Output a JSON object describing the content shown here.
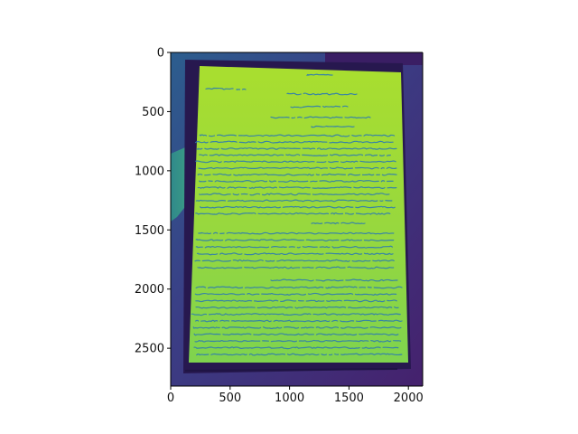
{
  "chart_data": {
    "type": "heatmap",
    "title": "",
    "xlabel": "",
    "ylabel": "",
    "xlim": [
      0,
      2120
    ],
    "ylim": [
      2820,
      0
    ],
    "x_ticks": [
      0,
      500,
      1000,
      1500,
      2000
    ],
    "y_ticks": [
      0,
      500,
      1000,
      1500,
      2000,
      2500
    ],
    "y_axis_inverted": true,
    "grid": false,
    "legend": "none",
    "colormap": "viridis",
    "description_content": "grayscale photo of a handwritten document rendered with a viridis colormap",
    "colors": {
      "background_dark": "#3b3f86",
      "background_mid": "#2f6f8e",
      "paper_bright": "#a8dc35",
      "paper_mid": "#8fd645",
      "ink": "#2e7bb0",
      "frame": "#2a1b55"
    }
  }
}
